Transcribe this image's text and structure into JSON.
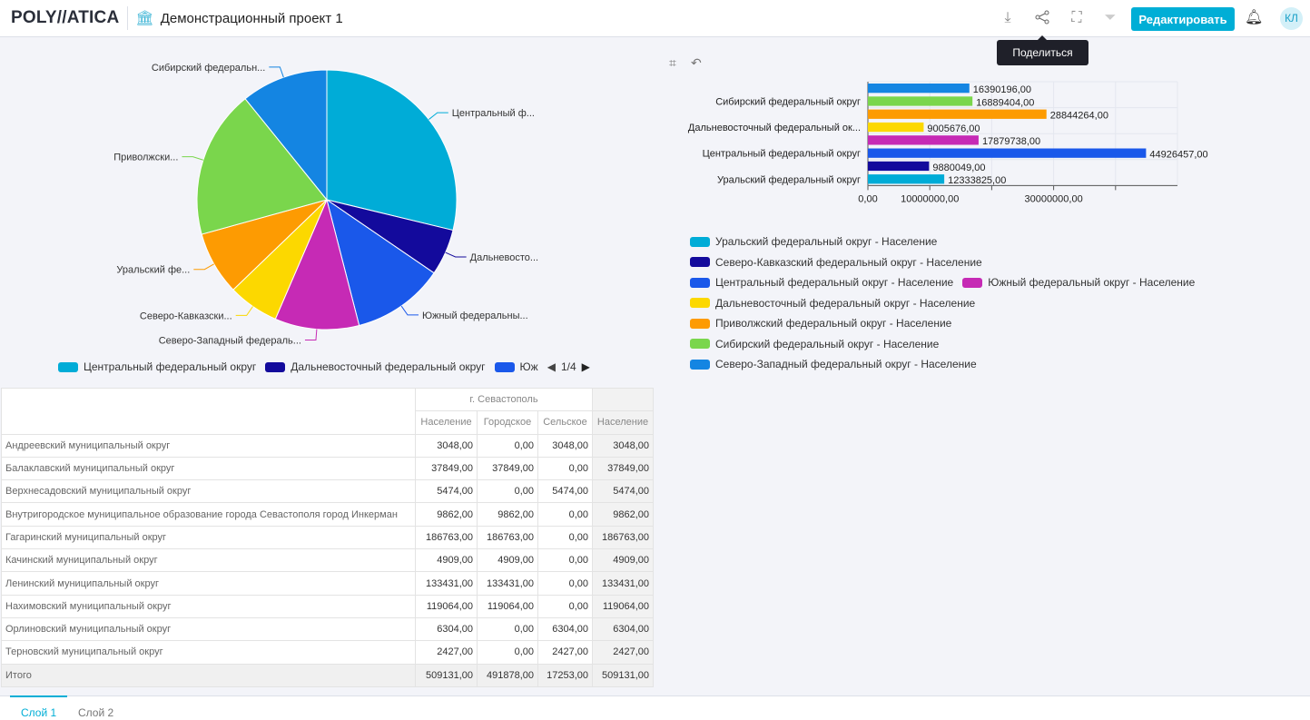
{
  "header": {
    "logo": "POLY//ATICA",
    "project_title": "Демонстрационный проект 1",
    "edit_label": "Редактировать",
    "avatar": "КЛ",
    "tooltip": "Поделиться",
    "icons": [
      "download-icon",
      "share-icon",
      "fullscreen-icon",
      "filter-icon",
      "bell-icon"
    ],
    "accent": "#00aed6"
  },
  "pie": {
    "slices": [
      {
        "name": "Центральный федеральный округ",
        "label": "Центральный ф...",
        "value": 44926457,
        "color": "#00acd7"
      },
      {
        "name": "Дальневосточный федеральный округ",
        "label": "Дальневосто...",
        "value": 9005676,
        "color": "#130a9c"
      },
      {
        "name": "Южный федеральный округ",
        "label": "Южный федеральны...",
        "value": 17879738,
        "color": "#1a58ea"
      },
      {
        "name": "Северо-Западный федеральный округ",
        "label": "Северо-Западный федераль...",
        "value": 16390196,
        "color": "#c62ab5"
      },
      {
        "name": "Северо-Кавказский федеральный округ",
        "label": "Северо-Кавказски...",
        "value": 9880049,
        "color": "#fcd800"
      },
      {
        "name": "Уральский федеральный округ",
        "label": "Уральский фе...",
        "value": 12333825,
        "color": "#fd9b02"
      },
      {
        "name": "Приволжский федеральный округ",
        "label": "Приволжски...",
        "value": 28844264,
        "color": "#7ad64c"
      },
      {
        "name": "Сибирский федеральный округ",
        "label": "Сибирский федеральн...",
        "value": 16889404,
        "color": "#1485e2"
      }
    ],
    "legend": [
      {
        "label": "Центральный федеральный округ",
        "color": "#00acd7"
      },
      {
        "label": "Дальневосточный федеральный округ",
        "color": "#130a9c"
      },
      {
        "label": "Юж",
        "color": "#1a58ea"
      }
    ],
    "legend_page": "1/4"
  },
  "chart_data": {
    "type": "bar",
    "orientation": "horizontal",
    "xlim": [
      0,
      50000000
    ],
    "xticks": [
      "0,00",
      "10000000,00",
      "30000000,00"
    ],
    "category_labels": [
      "Сибирский федеральный округ",
      "Дальневосточный федеральный ок...",
      "Центральный федеральный округ",
      "Уральский федеральный округ"
    ],
    "series": [
      {
        "name": "Северо-Западный федеральный округ - Население",
        "value": 16390196,
        "label": "16390196,00",
        "color": "#1485e2"
      },
      {
        "name": "Сибирский федеральный округ - Население",
        "value": 16889404,
        "label": "16889404,00",
        "color": "#7ad64c"
      },
      {
        "name": "Приволжский федеральный округ - Население",
        "value": 28844264,
        "label": "28844264,00",
        "color": "#fd9b02"
      },
      {
        "name": "Дальневосточный федеральный округ - Население",
        "value": 9005676,
        "label": "9005676,00",
        "color": "#fcd800"
      },
      {
        "name": "Южный федеральный округ - Население",
        "value": 17879738,
        "label": "17879738,00",
        "color": "#c62ab5"
      },
      {
        "name": "Центральный федеральный округ - Население",
        "value": 44926457,
        "label": "44926457,00",
        "color": "#1a58ea"
      },
      {
        "name": "Северо-Кавказский федеральный округ - Население",
        "value": 9880049,
        "label": "9880049,00",
        "color": "#130a9c"
      },
      {
        "name": "Уральский федеральный округ - Население",
        "value": 12333825,
        "label": "12333825,00",
        "color": "#00acd7"
      }
    ],
    "legend_rows": [
      [
        7
      ],
      [
        6
      ],
      [
        5,
        4
      ],
      [
        3
      ],
      [
        2
      ],
      [
        1
      ],
      [
        0
      ]
    ]
  },
  "table": {
    "group_header": "г. Севастополь",
    "columns": [
      "Население",
      "Городское",
      "Сельское",
      "Население"
    ],
    "rows": [
      [
        "Андреевский муниципальный округ",
        "3048,00",
        "0,00",
        "3048,00",
        "3048,00"
      ],
      [
        "Балаклавский муниципальный округ",
        "37849,00",
        "37849,00",
        "0,00",
        "37849,00"
      ],
      [
        "Верхнесадовский муниципальный округ",
        "5474,00",
        "0,00",
        "5474,00",
        "5474,00"
      ],
      [
        "Внутригородское муниципальное образование города Севастополя город Инкерман",
        "9862,00",
        "9862,00",
        "0,00",
        "9862,00"
      ],
      [
        "Гагаринский муниципальный округ",
        "186763,00",
        "186763,00",
        "0,00",
        "186763,00"
      ],
      [
        "Качинский муниципальный округ",
        "4909,00",
        "4909,00",
        "0,00",
        "4909,00"
      ],
      [
        "Ленинский муниципальный округ",
        "133431,00",
        "133431,00",
        "0,00",
        "133431,00"
      ],
      [
        "Нахимовский муниципальный округ",
        "119064,00",
        "119064,00",
        "0,00",
        "119064,00"
      ],
      [
        "Орлиновский муниципальный округ",
        "6304,00",
        "0,00",
        "6304,00",
        "6304,00"
      ],
      [
        "Терновский муниципальный округ",
        "2427,00",
        "0,00",
        "2427,00",
        "2427,00"
      ]
    ],
    "total": [
      "Итого",
      "509131,00",
      "491878,00",
      "17253,00",
      "509131,00"
    ]
  },
  "layers": [
    "Слой 1",
    "Слой 2"
  ]
}
